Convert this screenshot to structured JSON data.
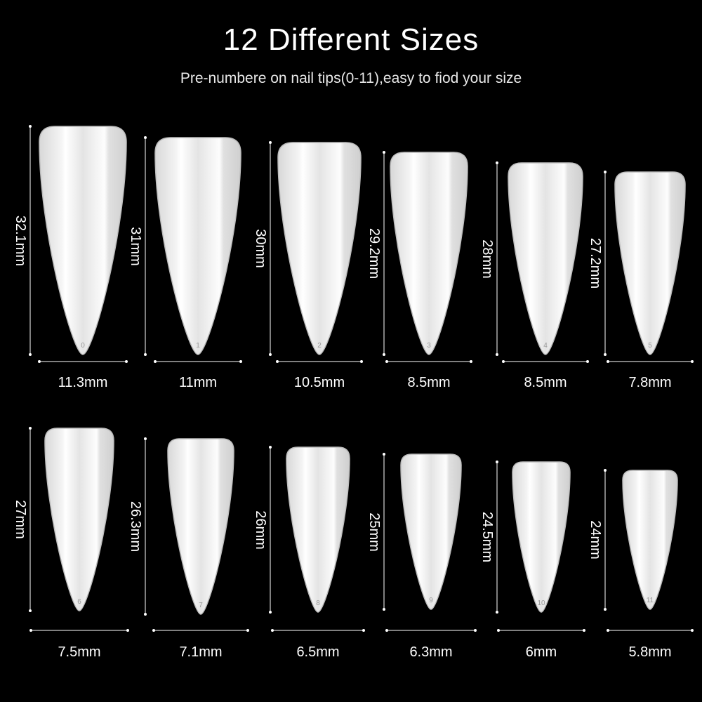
{
  "title": "12 Different Sizes",
  "subtitle": "Pre-numbere on nail tips(0-11),easy to fiod your size",
  "colors": {
    "background": "#000000",
    "text": "#ffffff",
    "nail": "#e6e6e6"
  },
  "nails": [
    {
      "number": "0",
      "length": "32.1mm",
      "width": "11.3mm"
    },
    {
      "number": "1",
      "length": "31mm",
      "width": "11mm"
    },
    {
      "number": "2",
      "length": "30mm",
      "width": "10.5mm"
    },
    {
      "number": "3",
      "length": "29.2mm",
      "width": "8.5mm"
    },
    {
      "number": "4",
      "length": "28mm",
      "width": "8.5mm"
    },
    {
      "number": "5",
      "length": "27.2mm",
      "width": "7.8mm"
    },
    {
      "number": "6",
      "length": "27mm",
      "width": "7.5mm"
    },
    {
      "number": "7",
      "length": "26.3mm",
      "width": "7.1mm"
    },
    {
      "number": "8",
      "length": "26mm",
      "width": "6.5mm"
    },
    {
      "number": "9",
      "length": "25mm",
      "width": "6.3mm"
    },
    {
      "number": "10",
      "length": "24.5mm",
      "width": "6mm"
    },
    {
      "number": "11",
      "length": "24mm",
      "width": "5.8mm"
    }
  ]
}
